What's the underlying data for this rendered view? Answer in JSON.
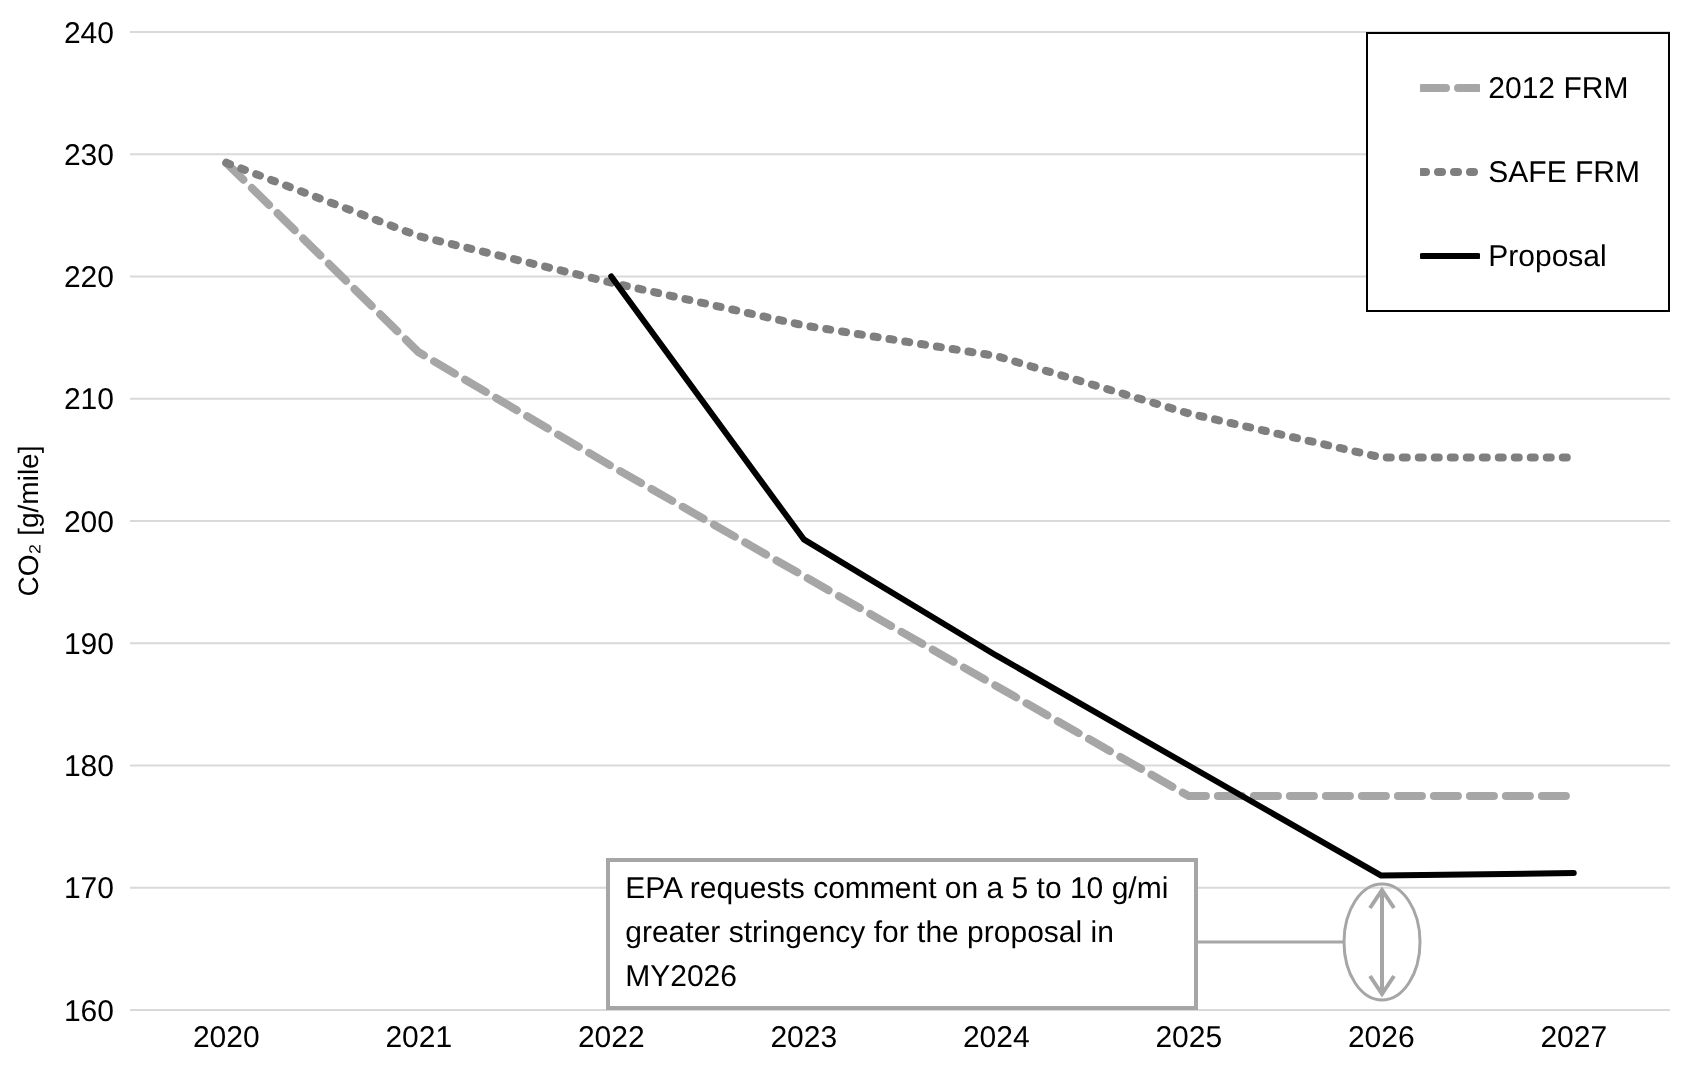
{
  "chart_data": {
    "type": "line",
    "ylabel": "CO₂ [g/mile]",
    "categories": [
      "2020",
      "2021",
      "2022",
      "2023",
      "2024",
      "2025",
      "2026",
      "2027"
    ],
    "series": [
      {
        "name": "2012 FRM",
        "color": "#a6a6a6",
        "line_style": "dashed",
        "values": [
          229.3,
          213.8,
          204.5,
          195.5,
          186.5,
          177.5,
          177.5,
          177.5
        ]
      },
      {
        "name": "SAFE FRM",
        "color": "#7f7f7f",
        "line_style": "dotted",
        "values": [
          229.3,
          223.3,
          219.5,
          216,
          213.5,
          208.8,
          205.2,
          205.2
        ]
      },
      {
        "name": "Proposal",
        "color": "#000000",
        "line_style": "solid",
        "values": [
          null,
          null,
          220,
          198.5,
          189,
          180,
          171,
          171.2
        ]
      }
    ],
    "ylim": [
      160,
      240
    ],
    "yticks": [
      160,
      170,
      180,
      190,
      200,
      210,
      220,
      230,
      240
    ],
    "grid": "y",
    "legend": "top right",
    "marker": "none",
    "annotations": [
      "EPA requests comment on a 5 to 10 g/mi greater stringency for the proposal in MY2026"
    ]
  }
}
